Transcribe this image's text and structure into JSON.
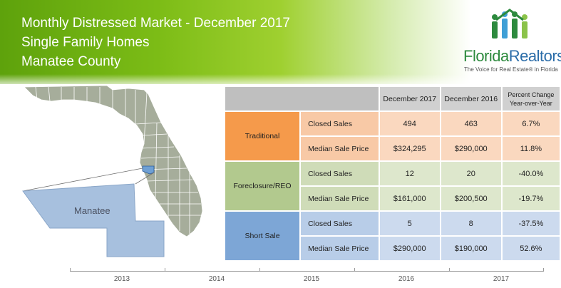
{
  "title": {
    "line1": "Monthly Distressed Market - December 2017",
    "line2": "Single Family Homes",
    "line3": "Manatee County"
  },
  "logo": {
    "name_part1": "Florida",
    "name_part2": "Realtors",
    "registered": "®",
    "tagline": "The Voice for Real Estate® in Florida",
    "colors": {
      "green": "#2d8a3e",
      "blue": "#2a6ca8"
    }
  },
  "map": {
    "county_label": "Manatee",
    "icon": "florida-county-map"
  },
  "table": {
    "columns": {
      "current": "December 2017",
      "previous": "December 2016",
      "change_line1": "Percent Change",
      "change_line2": "Year-over-Year"
    },
    "groups": [
      {
        "name": "Traditional",
        "color": "#f59a4b",
        "rows": [
          {
            "label": "Closed Sales",
            "current": "494",
            "previous": "463",
            "change": "6.7%"
          },
          {
            "label": "Median Sale Price",
            "current": "$324,295",
            "previous": "$290,000",
            "change": "11.8%"
          }
        ]
      },
      {
        "name": "Foreclosure/REO",
        "color": "#b2c98e",
        "rows": [
          {
            "label": "Closed Sales",
            "current": "12",
            "previous": "20",
            "change": "-40.0%"
          },
          {
            "label": "Median Sale Price",
            "current": "$161,000",
            "previous": "$200,500",
            "change": "-19.7%"
          }
        ]
      },
      {
        "name": "Short Sale",
        "color": "#7da6d6",
        "rows": [
          {
            "label": "Closed Sales",
            "current": "5",
            "previous": "8",
            "change": "-37.5%"
          },
          {
            "label": "Median Sale Price",
            "current": "$290,000",
            "previous": "$190,000",
            "change": "52.6%"
          }
        ]
      }
    ]
  },
  "timeline": {
    "years": [
      "2013",
      "2014",
      "2015",
      "2016",
      "2017"
    ]
  }
}
